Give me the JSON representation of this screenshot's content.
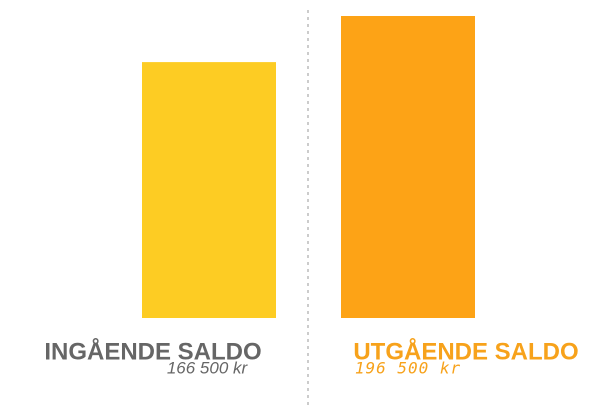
{
  "chart_data": {
    "type": "bar",
    "categories": [
      "INGÅENDE SALDO",
      "UTGÅENDE SALDO"
    ],
    "values": [
      166500,
      196500
    ],
    "value_labels": [
      "166 500 kr",
      "196 500 kr"
    ],
    "colors": [
      "#fdcc23",
      "#fda316"
    ]
  }
}
